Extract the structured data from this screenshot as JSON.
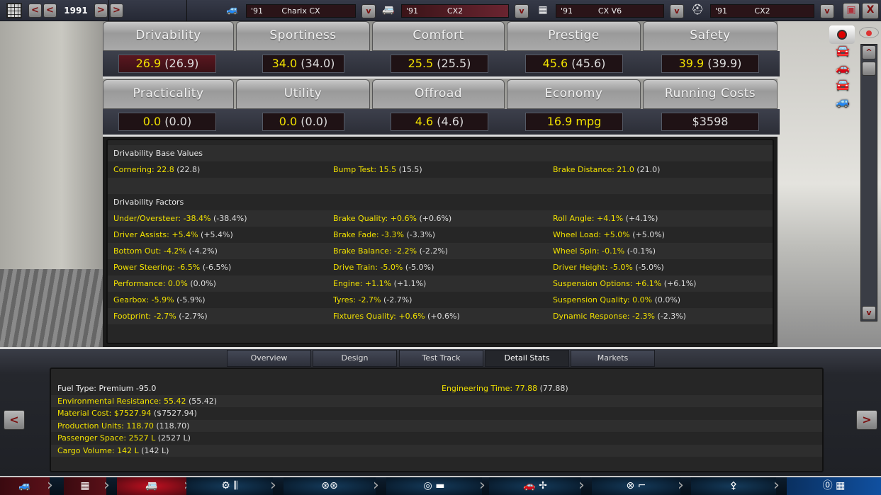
{
  "topbar": {
    "year": "1991",
    "prev_prev": "<",
    "prev": "<",
    "next": ">",
    "next_next": ">",
    "selectors": [
      {
        "icon": "car-body-icon",
        "year": "'91",
        "name": "Charix CX",
        "dropdown": "v"
      },
      {
        "icon": "chassis-icon",
        "year": "'91",
        "name": "CX2",
        "dropdown": "v"
      },
      {
        "icon": "engine-icon",
        "year": "'91",
        "name": "CX V6",
        "dropdown": "v"
      },
      {
        "icon": "gearbox-icon",
        "year": "'91",
        "name": "CX2",
        "dropdown": "v"
      }
    ],
    "save": "💾",
    "close": "X"
  },
  "stats": [
    {
      "label": "Drivability",
      "value": "26.9",
      "orig": "(26.9)",
      "highlight": true
    },
    {
      "label": "Sportiness",
      "value": "34.0",
      "orig": "(34.0)"
    },
    {
      "label": "Comfort",
      "value": "25.5",
      "orig": "(25.5)"
    },
    {
      "label": "Prestige",
      "value": "45.6",
      "orig": "(45.6)"
    },
    {
      "label": "Safety",
      "value": "39.9",
      "orig": "(39.9)"
    },
    {
      "label": "Practicality",
      "value": "0.0",
      "orig": "(0.0)"
    },
    {
      "label": "Utility",
      "value": "0.0",
      "orig": "(0.0)"
    },
    {
      "label": "Offroad",
      "value": "4.6",
      "orig": "(4.6)"
    },
    {
      "label": "Economy",
      "value": "16.9 mpg",
      "orig": ""
    },
    {
      "label": "Running Costs",
      "value": "",
      "orig": "$3598"
    }
  ],
  "detail": {
    "base_title": "Drivability Base Values",
    "base": [
      {
        "label": "Cornering:",
        "value": "22.8",
        "orig": "(22.8)"
      },
      {
        "label": "Bump Test:",
        "value": "15.5",
        "orig": "(15.5)"
      },
      {
        "label": "Brake Distance:",
        "value": "21.0",
        "orig": "(21.0)"
      }
    ],
    "factors_title": "Drivability Factors",
    "factors": [
      [
        {
          "label": "Under/Oversteer:",
          "value": "-38.4%",
          "orig": "(-38.4%)"
        },
        {
          "label": "Brake Quality:",
          "value": "+0.6%",
          "orig": "(+0.6%)"
        },
        {
          "label": "Roll Angle:",
          "value": "+4.1%",
          "orig": "(+4.1%)"
        }
      ],
      [
        {
          "label": "Driver Assists:",
          "value": "+5.4%",
          "orig": "(+5.4%)"
        },
        {
          "label": "Brake Fade:",
          "value": "-3.3%",
          "orig": "(-3.3%)"
        },
        {
          "label": "Wheel Load:",
          "value": "+5.0%",
          "orig": "(+5.0%)"
        }
      ],
      [
        {
          "label": "Bottom Out:",
          "value": "-4.2%",
          "orig": "(-4.2%)"
        },
        {
          "label": "Brake Balance:",
          "value": "-2.2%",
          "orig": "(-2.2%)"
        },
        {
          "label": "Wheel Spin:",
          "value": "-0.1%",
          "orig": "(-0.1%)"
        }
      ],
      [
        {
          "label": "Power Steering:",
          "value": "-6.5%",
          "orig": "(-6.5%)"
        },
        {
          "label": "Drive Train:",
          "value": "-5.0%",
          "orig": "(-5.0%)"
        },
        {
          "label": "Driver Height:",
          "value": "-5.0%",
          "orig": "(-5.0%)"
        }
      ],
      [
        {
          "label": "Performance:",
          "value": "0.0%",
          "orig": "(0.0%)"
        },
        {
          "label": "Engine:",
          "value": "+1.1%",
          "orig": "(+1.1%)"
        },
        {
          "label": "Suspension Options:",
          "value": "+6.1%",
          "orig": "(+6.1%)"
        }
      ],
      [
        {
          "label": "Gearbox:",
          "value": "-5.9%",
          "orig": "(-5.9%)"
        },
        {
          "label": "Tyres:",
          "value": "-2.7%",
          "orig": "(-2.7%)"
        },
        {
          "label": "Suspension Quality:",
          "value": "0.0%",
          "orig": "(0.0%)"
        }
      ],
      [
        {
          "label": "Footprint:",
          "value": "-2.7%",
          "orig": "(-2.7%)"
        },
        {
          "label": "Fixtures Quality:",
          "value": "+0.6%",
          "orig": "(+0.6%)"
        },
        {
          "label": "Dynamic Response:",
          "value": "-2.3%",
          "orig": "(-2.3%)"
        }
      ]
    ]
  },
  "tabs": [
    {
      "label": "Overview"
    },
    {
      "label": "Design"
    },
    {
      "label": "Test Track"
    },
    {
      "label": "Detail Stats",
      "active": true
    },
    {
      "label": "Markets"
    }
  ],
  "bottom": {
    "fuel_type": "Fuel Type: Premium -95.0",
    "left": [
      {
        "label": "Environmental Resistance:",
        "value": "55.42",
        "orig": "(55.42)"
      },
      {
        "label": "Material Cost:",
        "value": "$7527.94",
        "orig": "($7527.94)"
      },
      {
        "label": "Production Units:",
        "value": "118.70",
        "orig": "(118.70)"
      },
      {
        "label": "Passenger Space:",
        "value": "2527 L",
        "orig": "(2527 L)"
      },
      {
        "label": "Cargo Volume:",
        "value": "142 L",
        "orig": "(142 L)"
      }
    ],
    "engineering": {
      "label": "Engineering Time:",
      "value": "77.88",
      "orig": "(77.88)"
    },
    "prev": "<",
    "next": ">"
  },
  "scroll": {
    "up": "^",
    "down": "v"
  },
  "nav": [
    {
      "icon": "car-body-icon",
      "active": "red"
    },
    {
      "icon": "chassis-icon",
      "active": "red"
    },
    {
      "icon": "body-design-icon",
      "active": "redbright"
    },
    {
      "icon": "engine-gearbox-icon"
    },
    {
      "icon": "wheels-icon"
    },
    {
      "icon": "brakes-icon"
    },
    {
      "icon": "aero-cooling-icon"
    },
    {
      "icon": "interior-icon"
    },
    {
      "icon": "suspension-icon"
    },
    {
      "icon": "finish-flag-icon",
      "active": "blue"
    }
  ],
  "colors": {
    "accent_value": "#f0e000",
    "highlight_box": "#5a1720",
    "nav_bg": "#0c1c2c"
  }
}
